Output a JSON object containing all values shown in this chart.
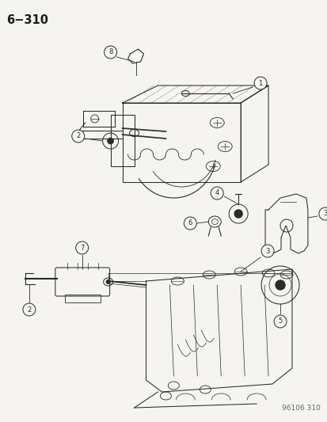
{
  "title": "6−310",
  "footer": "96106 310",
  "bg_color": "#f5f4f0",
  "fg_color": "#1a1a1a",
  "title_fontsize": 10.5,
  "footer_fontsize": 6.5,
  "fig_width": 4.14,
  "fig_height": 5.33,
  "dpi": 100,
  "line_color": "#2a2a2a",
  "lw": 0.75,
  "label_r": 0.019,
  "label_fontsize": 6.0
}
